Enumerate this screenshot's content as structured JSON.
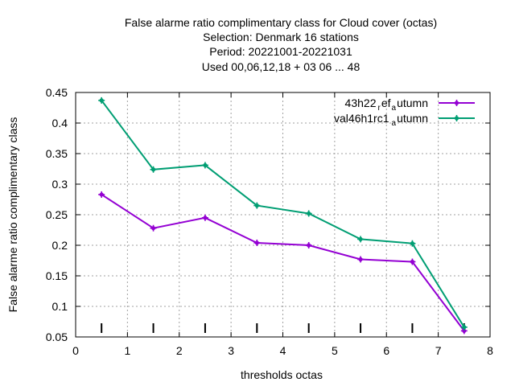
{
  "chart_data": {
    "type": "line",
    "title_lines": [
      "False alarme ratio complimentary class  for Cloud cover (octas)",
      "Selection: Denmark     16 stations",
      "Period: 20221001-20221031",
      "Used  00,06,12,18  + 03 06 ... 48"
    ],
    "xlabel": "thresholds octas",
    "ylabel": "False alarme ratio complimentary class",
    "xlim": [
      0,
      8
    ],
    "ylim": [
      0.05,
      0.45
    ],
    "xticks": [
      "0",
      "1",
      "2",
      "3",
      "4",
      "5",
      "6",
      "7",
      "8"
    ],
    "yticks": [
      "0.05",
      "0.1",
      "0.15",
      "0.2",
      "0.25",
      "0.3",
      "0.35",
      "0.4",
      "0.45"
    ],
    "grid": true,
    "legend_position": "top-right",
    "x": [
      0.5,
      1.5,
      2.5,
      3.5,
      4.5,
      5.5,
      6.5,
      7.5
    ],
    "series": [
      {
        "name_main": "43h22",
        "name_sub1": "r",
        "name_mid": "ef",
        "name_sub2": "a",
        "name_tail": "utumn",
        "color": "#9400d3",
        "values": [
          0.283,
          0.228,
          0.245,
          0.204,
          0.2,
          0.177,
          0.173,
          0.06
        ]
      },
      {
        "name_main": "val46h1rc1",
        "name_sub1": "",
        "name_mid": "",
        "name_sub2": "a",
        "name_tail": "utumn",
        "color": "#009e73",
        "values": [
          0.437,
          0.324,
          0.331,
          0.265,
          0.252,
          0.21,
          0.203,
          0.066
        ]
      }
    ],
    "marker_x": [
      0.5,
      1.5,
      2.5,
      3.5,
      4.5,
      5.5,
      6.5,
      7.5
    ]
  }
}
